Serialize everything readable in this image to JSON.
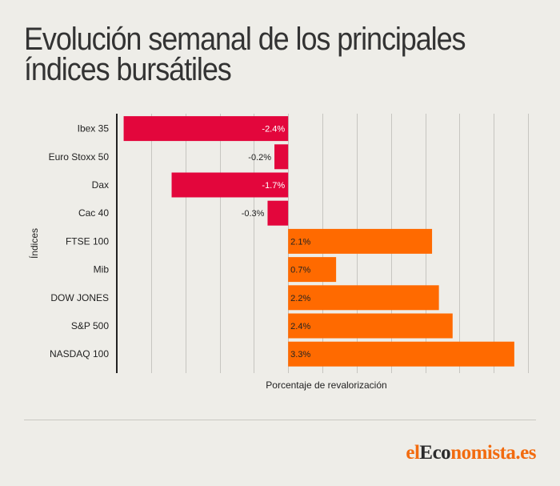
{
  "title": "Evolución semanal de los principales índices bursátiles",
  "brand": {
    "prefix": "el",
    "middle": "Eco",
    "suffix": "nomista.es"
  },
  "colors": {
    "negative": "#e3063c",
    "positive": "#ff6a00",
    "brand": "#f26b0f",
    "background": "#eeede8"
  },
  "chart_data": {
    "type": "bar",
    "orientation": "horizontal",
    "title": "Evolución semanal de los principales índices bursátiles",
    "xlabel": "Porcentaje de revalorización",
    "ylabel": "Índices",
    "categories": [
      "Ibex 35",
      "Euro Stoxx 50",
      "Dax",
      "Cac 40",
      "FTSE 100",
      "Mib",
      "DOW JONES",
      "S&P 500",
      "NASDAQ 100"
    ],
    "values": [
      -2.4,
      -0.2,
      -1.7,
      -0.3,
      2.1,
      0.7,
      2.2,
      2.4,
      3.3
    ],
    "value_labels": [
      "-2.4%",
      "-0.2%",
      "-1.7%",
      "-0.3%",
      "2.1%",
      "0.7%",
      "2.2%",
      "2.4%",
      "3.3%"
    ],
    "xlim": [
      -2.5,
      3.5
    ],
    "grid_step": 0.5,
    "grid": true,
    "tick_labels_shown": false
  }
}
